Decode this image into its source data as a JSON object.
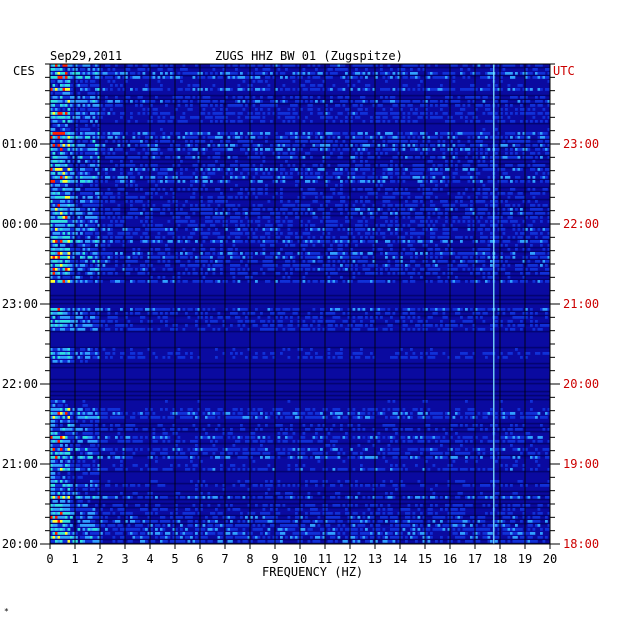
{
  "header": {
    "date": "Sep29,2011",
    "station": "ZUGS HHZ BW 01 (Zugspitze)"
  },
  "axes": {
    "left_tz": "CES",
    "right_tz": "UTC"
  },
  "chart_data": {
    "type": "heatmap",
    "title": "ZUGS HHZ BW 01 (Zugspitze)",
    "xlabel": "FREQUENCY (HZ)",
    "ylabel": "",
    "xlim": [
      0,
      20
    ],
    "x_ticks": [
      0,
      1,
      2,
      3,
      4,
      5,
      6,
      7,
      8,
      9,
      10,
      11,
      12,
      13,
      14,
      15,
      16,
      17,
      18,
      19,
      20
    ],
    "y_ticks_left": [
      "01:00",
      "00:00",
      "23:00",
      "22:00",
      "21:00",
      "20:00"
    ],
    "y_ticks_right": [
      "23:00",
      "22:00",
      "21:00",
      "20:00",
      "19:00",
      "18:00"
    ],
    "grid": true,
    "colors": {
      "background": "#0a0aa0",
      "low": "#1030d8",
      "mid": "#30a0ff",
      "high": "#ffff30",
      "peak": "#ff2000",
      "utc_label": "#cc0000"
    },
    "features": {
      "persistent_line_hz": 17.8,
      "quiet_band_ces": [
        "23:20",
        "22:50"
      ],
      "high_energy_band_hz": [
        0,
        0.8
      ]
    }
  },
  "footer_mark": "*"
}
